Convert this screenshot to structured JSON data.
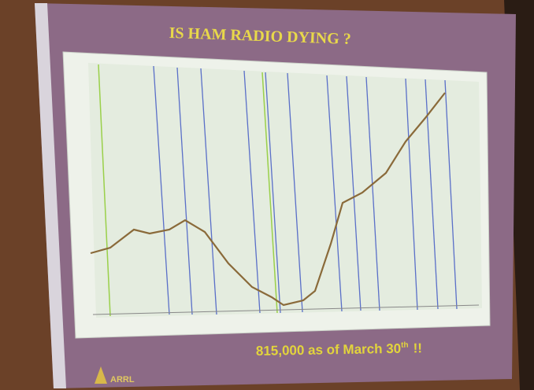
{
  "slide": {
    "title": "IS HAM RADIO DYING ?",
    "caption": {
      "main": "815,000 as of March 30",
      "sup": "th",
      "end": "!!"
    },
    "logo": "ARRL"
  }
}
